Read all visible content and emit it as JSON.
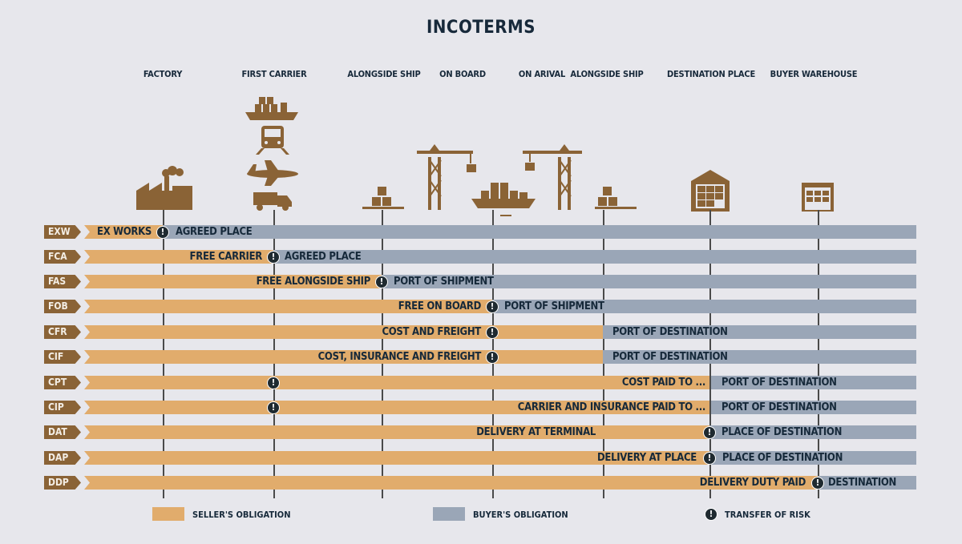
{
  "title": "INCOTERMS",
  "locations": [
    "FACTORY",
    "FIRST CARRIER",
    "ALONGSIDE SHIP",
    "ON BOARD",
    "ON ARIVAL",
    "ALONGSIDE SHIP",
    "DESTINATION PLACE",
    "BUYER WAREHOUSE"
  ],
  "terms": [
    {
      "code": "EXW",
      "seller_label": "EX WORKS",
      "buyer_label": "AGREED PLACE"
    },
    {
      "code": "FCA",
      "seller_label": "FREE CARRIER",
      "buyer_label": "AGREED PLACE"
    },
    {
      "code": "FAS",
      "seller_label": "FREE ALONGSIDE SHIP",
      "buyer_label": "PORT OF SHIPMENT"
    },
    {
      "code": "FOB",
      "seller_label": "FREE ON BOARD",
      "buyer_label": "PORT OF SHIPMENT"
    },
    {
      "code": "CFR",
      "seller_label": "COST AND FREIGHT",
      "buyer_label": "PORT OF DESTINATION"
    },
    {
      "code": "CIF",
      "seller_label": "COST, INSURANCE AND FREIGHT",
      "buyer_label": "PORT OF DESTINATION"
    },
    {
      "code": "CPT",
      "seller_label": "COST PAID TO ...",
      "buyer_label": "PORT OF DESTINATION"
    },
    {
      "code": "CIP",
      "seller_label": "CARRIER AND INSURANCE PAID TO ...",
      "buyer_label": "PORT OF DESTINATION"
    },
    {
      "code": "DAT",
      "seller_label": "DELIVERY AT TERMINAL",
      "buyer_label": "PLACE OF DESTINATION"
    },
    {
      "code": "DAP",
      "seller_label": "DELIVERY AT PLACE",
      "buyer_label": "PLACE OF DESTINATION"
    },
    {
      "code": "DDP",
      "seller_label": "DELIVERY DUTY PAID",
      "buyer_label": "DESTINATION"
    }
  ],
  "legend": {
    "seller": "SELLER'S OBLIGATION",
    "buyer": "BUYER'S OBLIGATION",
    "risk": "TRANSFER OF RISK"
  },
  "colors": {
    "seller": "#e1ac6c",
    "buyer": "#9aa6b7",
    "code": "#8a6336",
    "icon": "#8a6336"
  },
  "risk_symbol": "!"
}
